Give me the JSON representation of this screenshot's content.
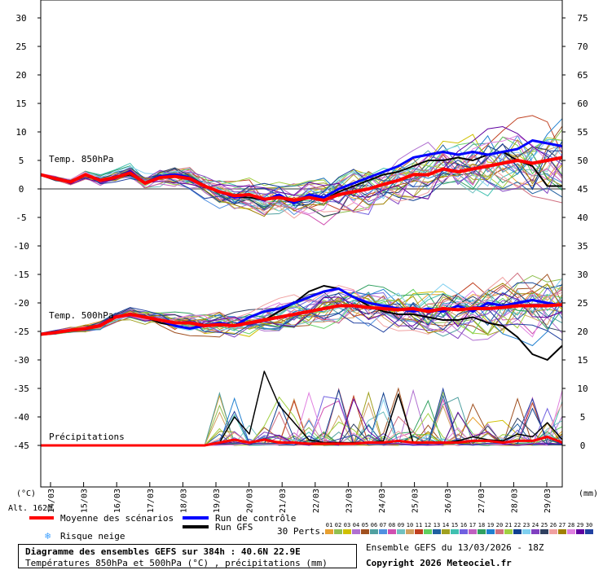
{
  "chart_data": {
    "type": "line",
    "title": "Diagramme des ensembles GEFS sur 384h : 40.6N 22.9E",
    "subtitle": "Températures 850hPa et 500hPa (°C) , précipitations (mm)",
    "left_axis": {
      "unit": "(°C)",
      "ticks": [
        30,
        25,
        20,
        15,
        10,
        5,
        0,
        -5,
        -10,
        -15,
        -20,
        -25,
        -30,
        -35,
        -40,
        -45
      ]
    },
    "right_axis": {
      "unit": "(mm)",
      "ticks": [
        75,
        70,
        65,
        60,
        55,
        50,
        45,
        40,
        35,
        30,
        25,
        20,
        15,
        10,
        5,
        0
      ]
    },
    "x_ticks": [
      "14/03",
      "15/03",
      "16/03",
      "17/03",
      "18/03",
      "19/03",
      "20/03",
      "21/03",
      "22/03",
      "23/03",
      "24/03",
      "25/03",
      "26/03",
      "27/03",
      "28/03",
      "29/03"
    ],
    "altitude": "Alt. 162m",
    "panel_labels": {
      "t850": "Temp. 850hPa",
      "t500": "Temp. 500hPa",
      "precip": "Précipitations"
    },
    "legend": {
      "mean": "Moyenne des scénarios",
      "control": "Run de contrôle",
      "gfs": "Run GFS",
      "snow": "Risque neige",
      "perts_label": "30 Perts.",
      "perts": [
        "01",
        "02",
        "03",
        "04",
        "05",
        "06",
        "07",
        "08",
        "09",
        "10",
        "11",
        "12",
        "13",
        "14",
        "15",
        "16",
        "17",
        "18",
        "19",
        "20",
        "21",
        "22",
        "23",
        "24",
        "25",
        "26",
        "27",
        "28",
        "29",
        "30"
      ]
    },
    "colors": {
      "mean": "#ff0000",
      "control": "#0000ff",
      "gfs": "#000000",
      "perts": [
        "#e8a030",
        "#90c050",
        "#d0c000",
        "#b070d0",
        "#a05020",
        "#50a0a0",
        "#5090e0",
        "#d050b0",
        "#70c0c0",
        "#d0a060",
        "#c04020",
        "#60d060",
        "#2060a0",
        "#a0a020",
        "#40c0b0",
        "#7060e0",
        "#c060c0",
        "#30a060",
        "#2080d0",
        "#d07080",
        "#a0d040",
        "#104090",
        "#80d0f0",
        "#8040c0",
        "#304060",
        "#f0a0a0",
        "#a08000",
        "#e080e0",
        "#6000a0",
        "#2040a0"
      ]
    },
    "series": [
      {
        "name": "Moyenne des scénarios (850hPa)",
        "values": [
          2.5,
          1.8,
          1.2,
          2.5,
          1.5,
          2.0,
          2.8,
          1.0,
          2.0,
          2.2,
          1.8,
          0.5,
          -0.5,
          -1.2,
          -1.0,
          -1.8,
          -1.5,
          -2.0,
          -1.5,
          -2.0,
          -1.0,
          -0.5,
          0.0,
          0.8,
          1.5,
          2.5,
          2.5,
          3.5,
          3.0,
          3.5,
          4.0,
          4.5,
          5.0,
          4.5,
          5.0,
          5.5
        ]
      },
      {
        "name": "Moyenne des scénarios (500hPa)",
        "values": [
          -25.5,
          -25.2,
          -24.8,
          -24.5,
          -24.0,
          -22.5,
          -22.0,
          -22.5,
          -23.0,
          -23.5,
          -23.5,
          -24.0,
          -23.8,
          -24.0,
          -23.5,
          -23.0,
          -22.5,
          -22.0,
          -21.5,
          -21.0,
          -20.5,
          -20.5,
          -20.8,
          -21.0,
          -21.2,
          -21.0,
          -21.5,
          -21.0,
          -21.2,
          -21.0,
          -21.0,
          -20.8,
          -20.5,
          -20.5,
          -20.5,
          -20.3
        ]
      },
      {
        "name": "Moyenne des scénarios (précipitations)",
        "values": [
          0,
          0,
          0,
          0,
          0,
          0,
          0,
          0,
          0,
          0,
          0,
          0,
          0.5,
          1,
          0.5,
          1,
          0.5,
          0.5,
          0.3,
          0.3,
          0.3,
          0.3,
          0.5,
          0.5,
          0.8,
          0.5,
          0.5,
          0.5,
          0.5,
          0.8,
          0.8,
          0.5,
          0.8,
          0.8,
          1.5,
          0.5
        ]
      },
      {
        "name": "Run de contrôle (850hPa)",
        "values": [
          2.5,
          1.8,
          1.2,
          2.5,
          1.5,
          2.0,
          3.0,
          1.0,
          2.2,
          2.5,
          2.0,
          0.5,
          -0.5,
          -1.5,
          -1.0,
          -2.0,
          -1.0,
          -2.5,
          -1.0,
          -1.5,
          0.0,
          1.0,
          2.0,
          3.0,
          4.0,
          5.5,
          6.0,
          6.5,
          6.0,
          6.5,
          6.0,
          6.5,
          7.0,
          8.5,
          8.0,
          7.5
        ]
      },
      {
        "name": "Run de contrôle (500hPa)",
        "values": [
          -25.5,
          -25.2,
          -24.8,
          -24.5,
          -24.0,
          -22.5,
          -22.0,
          -22.5,
          -23.0,
          -24.0,
          -24.5,
          -24.0,
          -23.5,
          -24.0,
          -22.5,
          -21.5,
          -21.0,
          -20.0,
          -19.0,
          -18.0,
          -17.5,
          -19.0,
          -20.0,
          -20.5,
          -21.0,
          -21.5,
          -21.0,
          -21.5,
          -20.5,
          -21.5,
          -20.0,
          -20.5,
          -20.0,
          -19.5,
          -20.0,
          -20.5
        ]
      },
      {
        "name": "Run GFS (850hPa)",
        "values": [
          2.5,
          1.8,
          1.2,
          2.5,
          1.5,
          2.0,
          2.5,
          1.0,
          2.0,
          2.5,
          2.0,
          0.5,
          -0.5,
          -1.5,
          -1.5,
          -2.0,
          -1.5,
          -2.5,
          -1.5,
          -2.0,
          -0.5,
          0.5,
          1.5,
          2.5,
          3.0,
          4.0,
          5.0,
          5.0,
          5.5,
          5.0,
          6.0,
          6.5,
          5.0,
          4.0,
          0.5,
          0.5
        ]
      },
      {
        "name": "Run GFS (500hPa)",
        "values": [
          -25.5,
          -25.2,
          -24.8,
          -24.5,
          -24.0,
          -22.5,
          -22.0,
          -22.5,
          -23.5,
          -24.0,
          -24.5,
          -24.0,
          -24.0,
          -24.0,
          -23.5,
          -23.0,
          -21.5,
          -20.0,
          -18.0,
          -17.0,
          -17.5,
          -19.0,
          -20.5,
          -21.5,
          -22.0,
          -22.0,
          -22.5,
          -23.0,
          -23.0,
          -22.5,
          -23.5,
          -24.0,
          -26.0,
          -29.0,
          -30.0,
          -27.5
        ]
      },
      {
        "name": "Run GFS (précipitations)",
        "values": [
          0,
          0,
          0,
          0,
          0,
          0,
          0,
          0,
          0,
          0,
          0,
          0,
          0.5,
          5,
          2,
          13,
          7,
          4,
          1,
          0.5,
          0.5,
          0.5,
          0.5,
          0.8,
          9,
          0.5,
          0.5,
          0.5,
          0.8,
          1.5,
          1,
          0.8,
          2,
          1.5,
          4,
          1
        ]
      }
    ]
  },
  "footer": {
    "title": "Diagramme des ensembles GEFS sur 384h : 40.6N 22.9E",
    "subtitle": "Températures 850hPa et 500hPa (°C) , précipitations (mm)",
    "ensemble": "Ensemble GEFS du 13/03/2026 - 18Z",
    "copyright": "Copyright 2026 Meteociel.fr"
  }
}
